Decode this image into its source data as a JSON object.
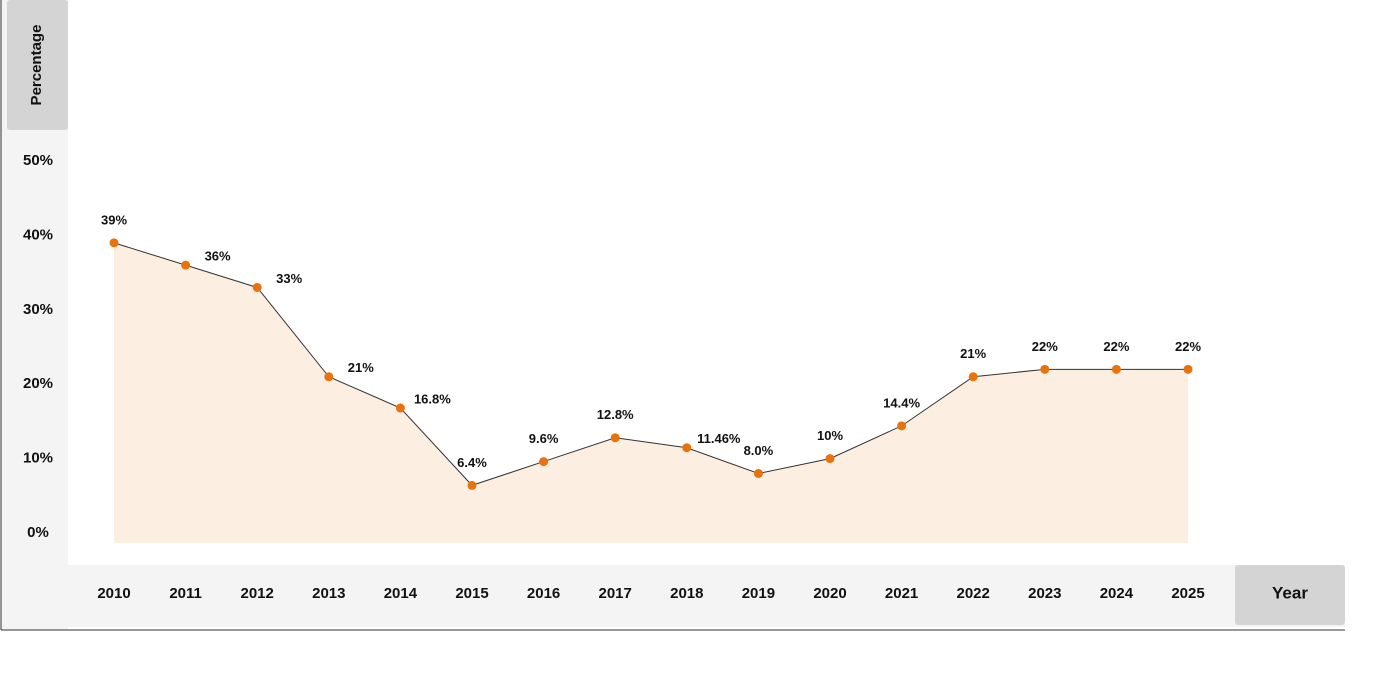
{
  "chart_data": {
    "type": "line",
    "y_label": "Percentage",
    "x_label": "Year",
    "categories": [
      "2010",
      "2011",
      "2012",
      "2013",
      "2014",
      "2015",
      "2016",
      "2017",
      "2018",
      "2019",
      "2020",
      "2021",
      "2022",
      "2023",
      "2024",
      "2025"
    ],
    "values": [
      39,
      36,
      33,
      21,
      16.8,
      6.4,
      9.6,
      12.8,
      11.46,
      8.0,
      10,
      14.4,
      21,
      22,
      22,
      22
    ],
    "value_labels": [
      "39%",
      "36%",
      "33%",
      "21%",
      "16.8%",
      "6.4%",
      "9.6%",
      "12.8%",
      "11.46%",
      "8.0%",
      "10%",
      "14.4%",
      "21%",
      "22%",
      "22%",
      "22%"
    ],
    "color": "#e8730c",
    "line_color": "#333333",
    "area_color": "#fdeee2",
    "ylim": [
      0,
      50
    ],
    "yticks": [
      {
        "value": 0,
        "label": "0%"
      },
      {
        "value": 10,
        "label": "10%"
      },
      {
        "value": 20,
        "label": "20%"
      },
      {
        "value": 30,
        "label": "30%"
      },
      {
        "value": 40,
        "label": "40%"
      },
      {
        "value": 50,
        "label": "50%"
      }
    ]
  }
}
